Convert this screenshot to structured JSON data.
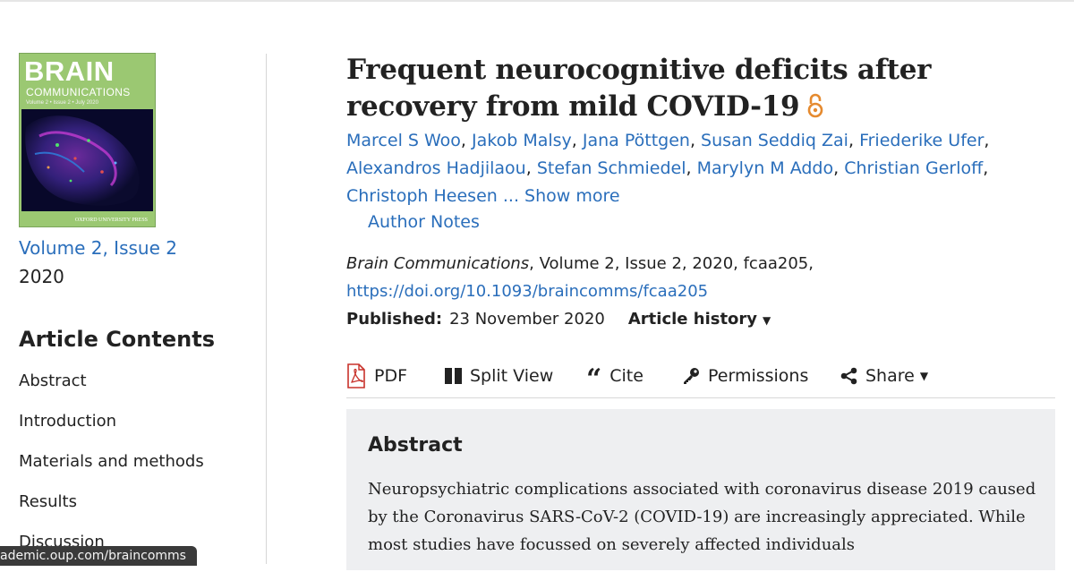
{
  "cover": {
    "title_line1": "BRAIN",
    "title_line2": "COMMUNICATIONS",
    "volume_line": "Volume 2 • Issue 2 • July 2020",
    "publisher": "OXFORD UNIVERSITY PRESS"
  },
  "sidebar": {
    "issue_link": "Volume 2, Issue 2",
    "year": "2020",
    "contents_title": "Article Contents",
    "toc": [
      "Abstract",
      "Introduction",
      "Materials and methods",
      "Results",
      "Discussion"
    ]
  },
  "status_bar": {
    "url": "ademic.oup.com/braincomms"
  },
  "article": {
    "title": "Frequent neurocognitive deficits after recovery from mild COVID-19",
    "authors": [
      "Marcel S Woo",
      "Jakob Malsy",
      "Jana Pöttgen",
      "Susan Seddiq Zai",
      "Friederike Ufer",
      "Alexandros Hadjilaou",
      "Stefan Schmiedel",
      "Marylyn M Addo",
      "Christian Gerloff",
      "Christoph Heesen"
    ],
    "show_more": "... Show more",
    "author_notes": "Author Notes",
    "journal": "Brain Communications",
    "citation_rest": ", Volume 2, Issue 2, 2020, fcaa205,",
    "doi": "https://doi.org/10.1093/braincomms/fcaa205",
    "published_label": "Published:",
    "published_date": "23 November 2020",
    "history_label": "Article history"
  },
  "toolbar": {
    "pdf": "PDF",
    "split_view": "Split View",
    "cite": "Cite",
    "permissions": "Permissions",
    "share": "Share"
  },
  "abstract": {
    "heading": "Abstract",
    "text": "Neuropsychiatric complications associated with coronavirus disease 2019 caused by the Coronavirus SARS-CoV-2 (COVID-19) are increasingly appreciated. While most studies have focussed on severely affected individuals"
  },
  "colors": {
    "link": "#2a6ebb",
    "text": "#222222",
    "cover_green": "#9bc872",
    "abstract_bg": "#eeeff1",
    "open_access": "#e58a2f",
    "pdf_red": "#c8322b"
  },
  "icons": [
    "open-access-icon",
    "pdf-icon",
    "split-view-icon",
    "cite-icon",
    "key-icon",
    "share-icon",
    "caret-down-icon"
  ]
}
